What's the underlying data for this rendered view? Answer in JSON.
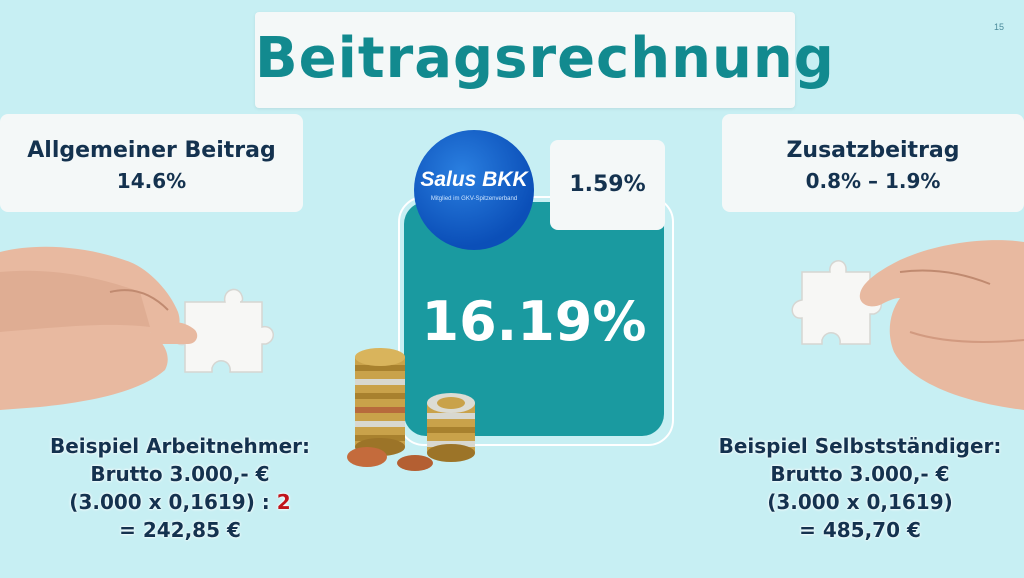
{
  "page_number": "15",
  "title": "Beitragsrechnung",
  "general": {
    "label": "Allgemeiner Beitrag",
    "value": "14.6%"
  },
  "additional": {
    "label": "Zusatzbeitrag",
    "value": "0.8% – 1.9%"
  },
  "insurer": {
    "name": "Salus BKK",
    "tagline": "Mitglied im GKV-Spitzenverband",
    "rate": "1.59%"
  },
  "total_rate": "16.19%",
  "example_employee": {
    "heading": "Beispiel Arbeitnehmer:",
    "gross": "Brutto 3.000,- €",
    "formula": "(3.000 x 0,1619) :",
    "divisor": "2",
    "result": "= 242,85 €"
  },
  "example_selfemployed": {
    "heading": "Beispiel Selbstständiger:",
    "gross": "Brutto 3.000,- €",
    "formula": "(3.000 x 0,1619)",
    "result": "= 485,70 €"
  },
  "colors": {
    "background": "#c7eff3",
    "teal": "#1a9aa0",
    "title": "#128a8f",
    "text": "#14324f",
    "accent": "#c0141a"
  }
}
